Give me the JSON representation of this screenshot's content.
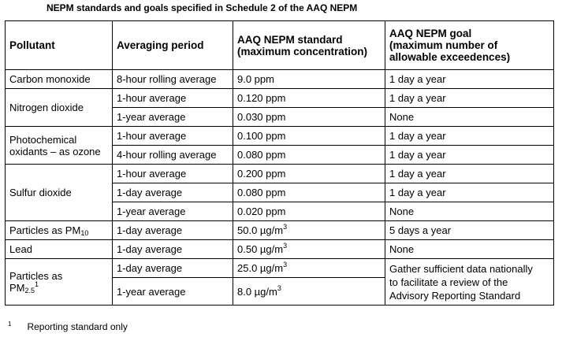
{
  "title": "NEPM standards and goals specified in Schedule 2 of the AAQ NEPM",
  "headers": {
    "pollutant": "Pollutant",
    "averaging": "Averaging period",
    "standard_line1": "AAQ NEPM standard",
    "standard_line2": "(maximum concentration)",
    "goal_line1": "AAQ NEPM goal",
    "goal_line2": "(maximum number of",
    "goal_line3": "allowable exceedences)"
  },
  "rows": {
    "co": {
      "pollutant": "Carbon monoxide",
      "period": "8-hour rolling average",
      "standard": "9.0 ppm",
      "goal": "1 day a year"
    },
    "no2": {
      "pollutant": "Nitrogen dioxide",
      "r1": {
        "period": "1-hour average",
        "standard": "0.120 ppm",
        "goal": "1 day a year"
      },
      "r2": {
        "period": "1-year average",
        "standard": "0.030 ppm",
        "goal": "None"
      }
    },
    "o3": {
      "pollutant_line1": "Photochemical",
      "pollutant_line2": "oxidants – as ozone",
      "r1": {
        "period": "1-hour average",
        "standard": "0.100 ppm",
        "goal": "1 day a year"
      },
      "r2": {
        "period": "4-hour rolling average",
        "standard": "0.080 ppm",
        "goal": "1 day a year"
      }
    },
    "so2": {
      "pollutant": "Sulfur dioxide",
      "r1": {
        "period": "1-hour average",
        "standard": "0.200 ppm",
        "goal": "1 day a year"
      },
      "r2": {
        "period": "1-day average",
        "standard": "0.080 ppm",
        "goal": "1 day a year"
      },
      "r3": {
        "period": "1-year average",
        "standard": "0.020 ppm",
        "goal": "None"
      }
    },
    "pm10": {
      "pollutant_prefix": "Particles as PM",
      "pollutant_sub": "10",
      "period": "1-day average",
      "standard_value": "50.0 µg/m",
      "standard_sup": "3",
      "goal": "5 days a year"
    },
    "lead": {
      "pollutant": "Lead",
      "period": "1-day average",
      "standard_value": "0.50 µg/m",
      "standard_sup": "3",
      "goal": "None"
    },
    "pm25": {
      "pollutant_line1": "Particles as",
      "pollutant_prefix": "PM",
      "pollutant_sub": "2.5",
      "pollutant_note": "1",
      "r1": {
        "period": "1-day average",
        "standard_value": "25.0 µg/m",
        "standard_sup": "3"
      },
      "r2": {
        "period": "1-year average",
        "standard_value": "8.0 µg/m",
        "standard_sup": "3"
      },
      "goal_line1": "Gather sufficient data nationally",
      "goal_line2": "to facilitate a review of the",
      "goal_line3": "Advisory Reporting Standard"
    }
  },
  "footnote": {
    "mark": "1",
    "text": "Reporting standard only"
  }
}
